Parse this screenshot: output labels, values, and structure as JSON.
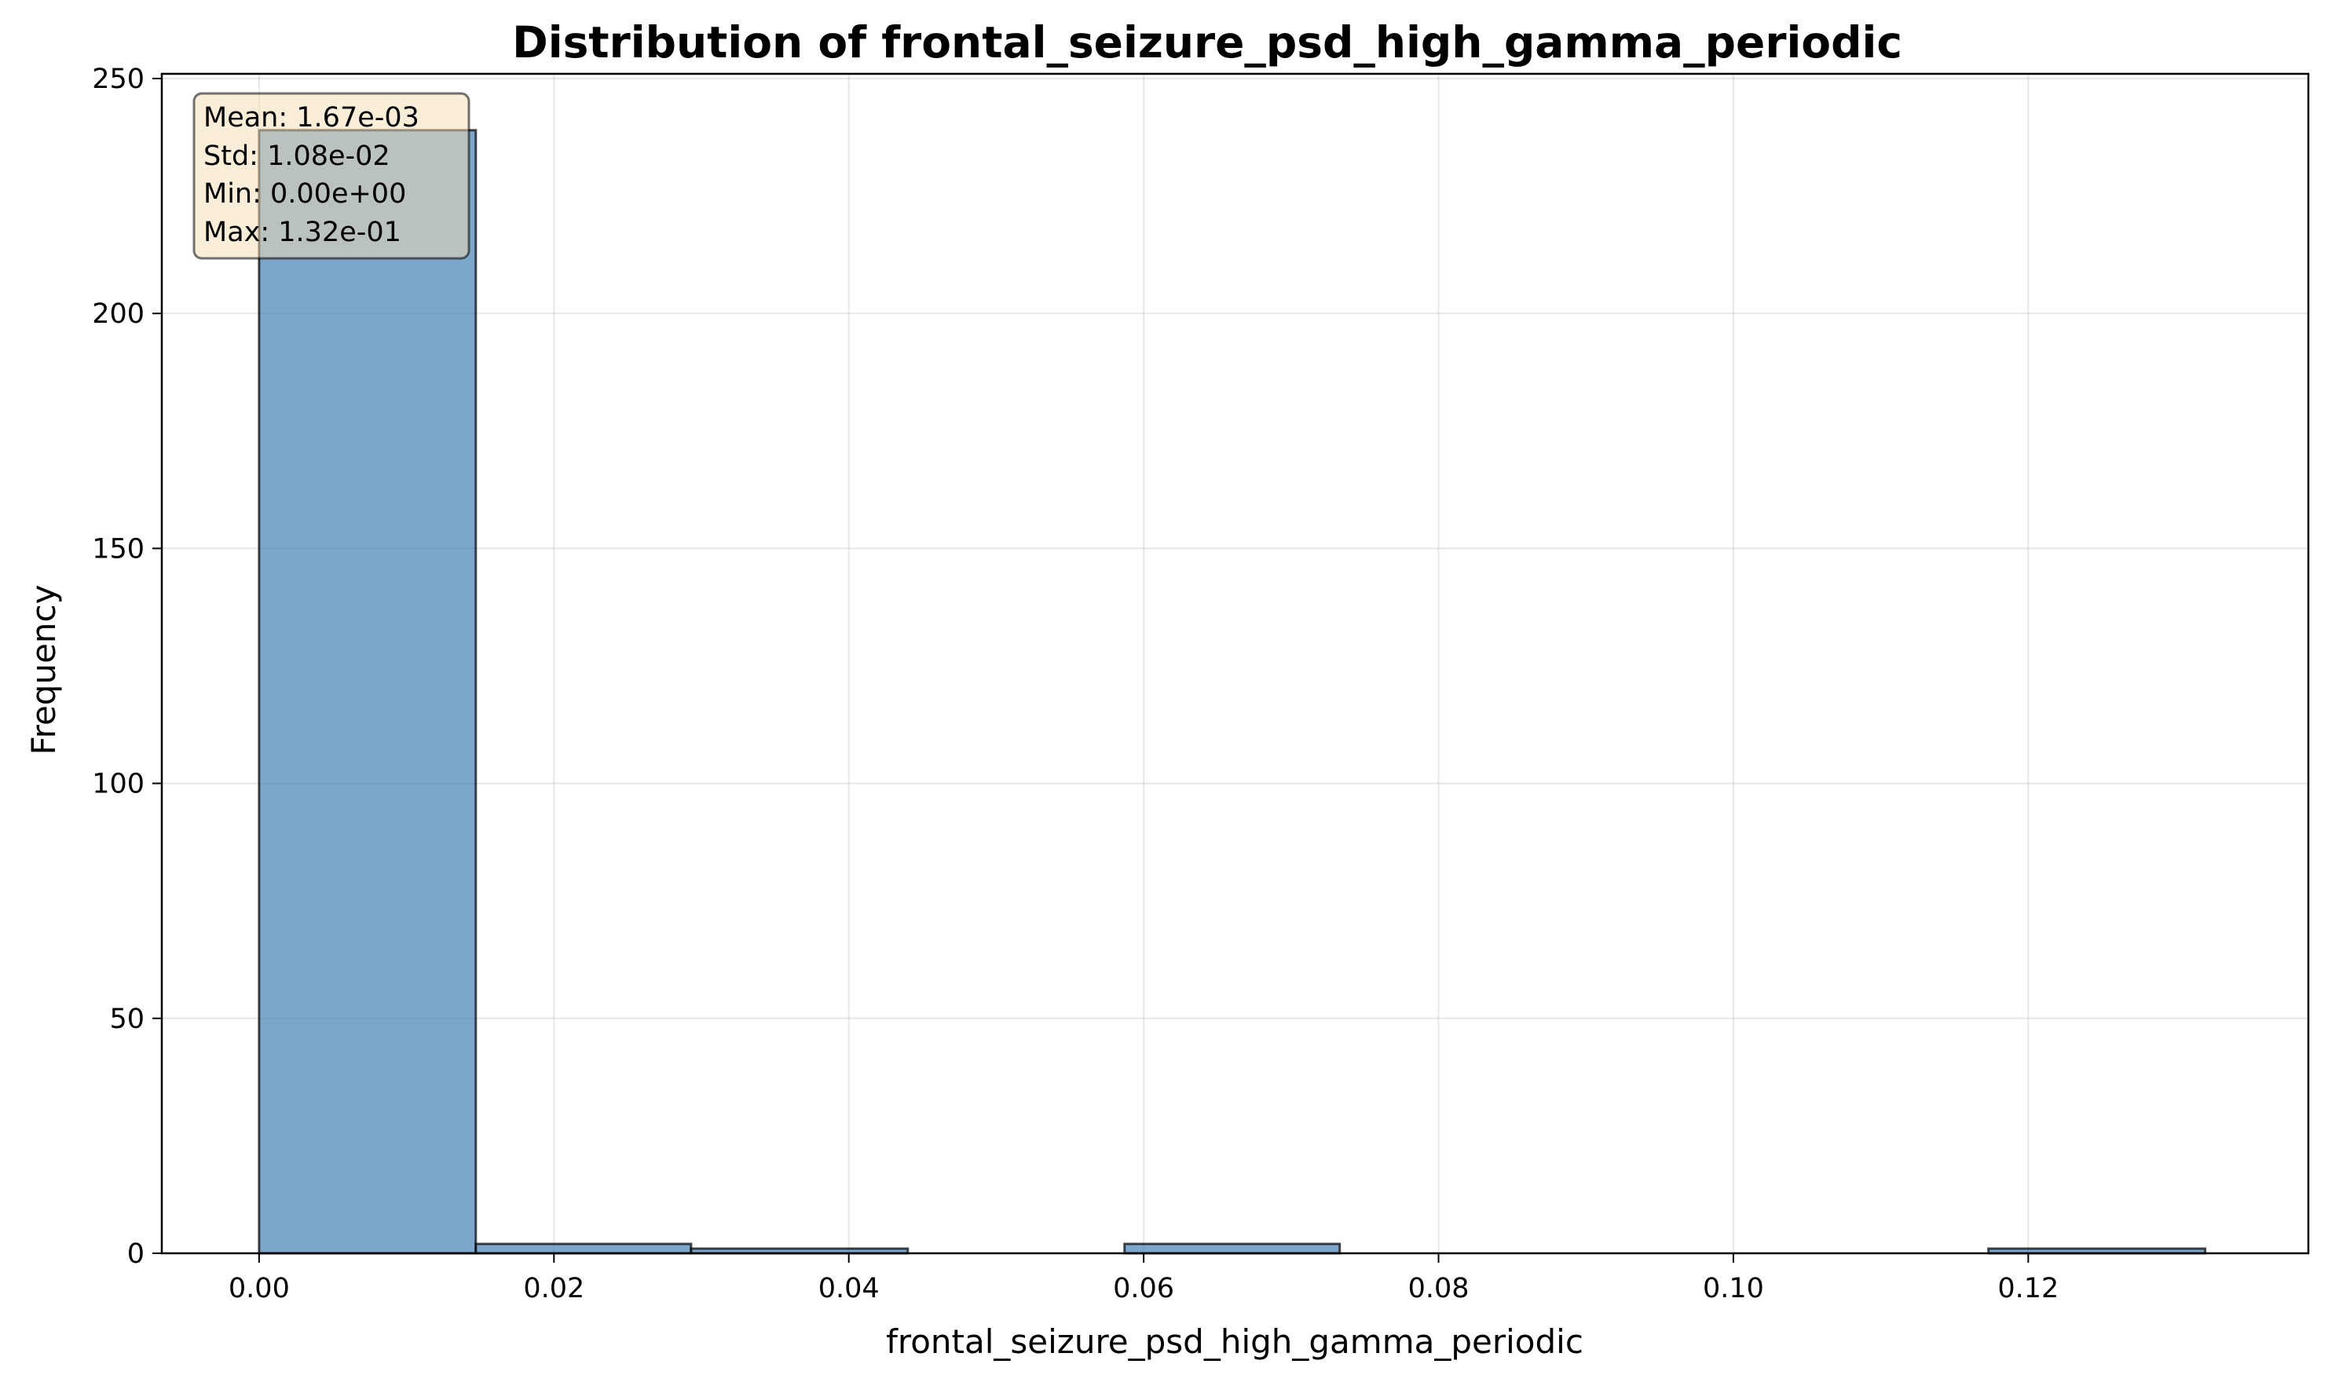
{
  "chart_data": {
    "type": "bar",
    "subtype": "histogram",
    "title": "Distribution of frontal_seizure_psd_high_gamma_periodic",
    "xlabel": "frontal_seizure_psd_high_gamma_periodic",
    "ylabel": "Frequency",
    "xlim": [
      -0.0066,
      0.139
    ],
    "ylim": [
      0,
      251
    ],
    "x_ticks": [
      0.0,
      0.02,
      0.04,
      0.06,
      0.08,
      0.1,
      0.12
    ],
    "x_tick_labels": [
      "0.00",
      "0.02",
      "0.04",
      "0.06",
      "0.08",
      "0.10",
      "0.12"
    ],
    "y_ticks": [
      0,
      50,
      100,
      150,
      200,
      250
    ],
    "y_tick_labels": [
      "0",
      "50",
      "100",
      "150",
      "200",
      "250"
    ],
    "bins": [
      {
        "x0": 0.0,
        "x1": 0.0147,
        "count": 239
      },
      {
        "x0": 0.0147,
        "x1": 0.0293,
        "count": 2
      },
      {
        "x0": 0.0293,
        "x1": 0.044,
        "count": 1
      },
      {
        "x0": 0.044,
        "x1": 0.0587,
        "count": 0
      },
      {
        "x0": 0.0587,
        "x1": 0.0733,
        "count": 2
      },
      {
        "x0": 0.0733,
        "x1": 0.088,
        "count": 0
      },
      {
        "x0": 0.088,
        "x1": 0.1027,
        "count": 0
      },
      {
        "x0": 0.1027,
        "x1": 0.1173,
        "count": 0
      },
      {
        "x0": 0.1173,
        "x1": 0.132,
        "count": 1
      }
    ],
    "grid": true,
    "stats": {
      "position": "top-left",
      "lines": [
        "Mean: 1.67e-03",
        "Std: 1.08e-02",
        "Min: 0.00e+00",
        "Max: 1.32e-01"
      ]
    },
    "colors": {
      "bar_fill": "#4682b4",
      "bar_edge": "#000000",
      "stats_box": "#f5deb3"
    }
  }
}
